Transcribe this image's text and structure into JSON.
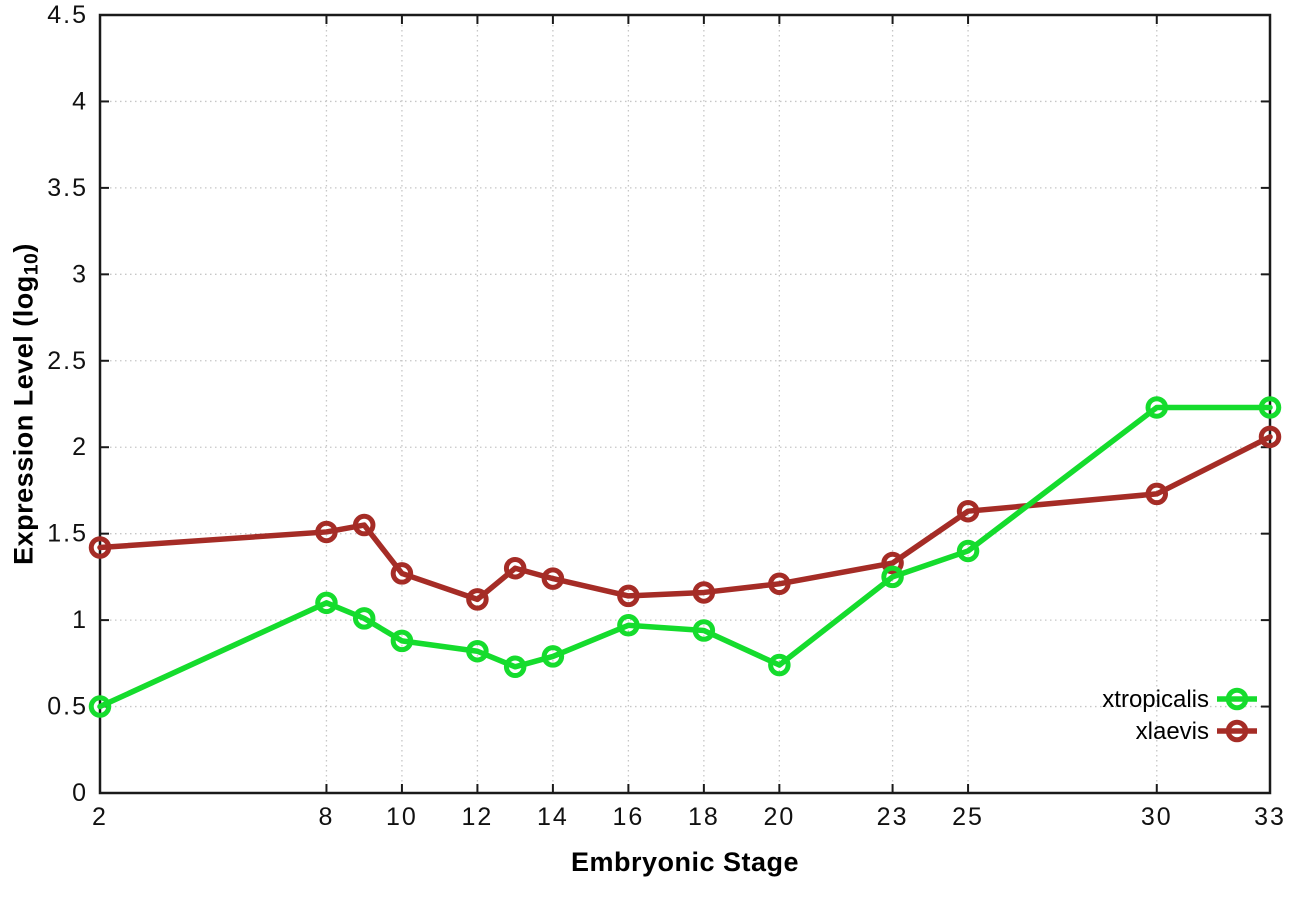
{
  "figure": {
    "xlabel": "Embryonic Stage",
    "ylabel": {
      "prefix": "Expression Level (log",
      "sub": "10",
      "suffix": ")"
    }
  },
  "chart_data": {
    "type": "line",
    "title": "",
    "xlabel": "Embryonic Stage",
    "ylabel": "Expression Level (log10)",
    "x": [
      2,
      8,
      9,
      10,
      12,
      13,
      14,
      16,
      18,
      20,
      23,
      25,
      30,
      33
    ],
    "series": [
      {
        "name": "xtropicalis",
        "color": "#15dc2d",
        "values": [
          0.5,
          1.1,
          1.01,
          0.88,
          0.82,
          0.73,
          0.79,
          0.97,
          0.94,
          0.74,
          1.25,
          1.4,
          2.23,
          2.23
        ]
      },
      {
        "name": "xlaevis",
        "color": "#a52c26",
        "values": [
          1.42,
          1.51,
          1.55,
          1.27,
          1.12,
          1.3,
          1.24,
          1.14,
          1.16,
          1.21,
          1.33,
          1.63,
          1.73,
          2.06
        ]
      }
    ],
    "xticks": [
      2,
      8,
      10,
      12,
      14,
      16,
      18,
      20,
      23,
      25,
      30,
      33
    ],
    "yticks": [
      0,
      0.5,
      1,
      1.5,
      2,
      2.5,
      3,
      3.5,
      4,
      4.5
    ],
    "xlim": [
      2,
      33
    ],
    "ylim": [
      0,
      4.5
    ],
    "grid": true,
    "legend_position": "inside-bottom-right",
    "legend": [
      "xtropicalis",
      "xlaevis"
    ],
    "axis_color": "#1a1a1a",
    "grid_color": "#c6c6c6",
    "tick_label_color": "#111111",
    "marker": "open-circle"
  }
}
